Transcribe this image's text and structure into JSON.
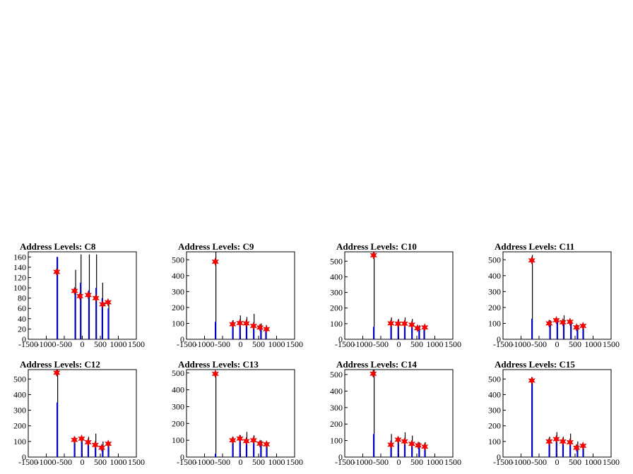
{
  "chart_data": [
    {
      "type": "bar",
      "title": "Address Levels: C8",
      "xlim": [
        -1500,
        1500
      ],
      "ylim": [
        0,
        170
      ],
      "yticks": [
        0,
        20,
        40,
        60,
        80,
        100,
        120,
        140,
        160
      ],
      "xticks": [
        -1500,
        -1000,
        -500,
        0,
        500,
        1000,
        1500
      ],
      "series": [
        {
          "x": [
            -700,
            -200,
            -50,
            180,
            380,
            550,
            720
          ],
          "values": [
            160,
            135,
            165,
            165,
            165,
            110,
            75
          ]
        },
        {
          "x": [
            -700,
            -200,
            -50,
            180,
            380,
            550,
            720
          ],
          "values": [
            160,
            100,
            110,
            95,
            100,
            80,
            60
          ]
        }
      ],
      "peaks": {
        "x": [
          -710,
          -215,
          -65,
          165,
          375,
          565,
          715
        ],
        "values": [
          131,
          94,
          84,
          86,
          80,
          68,
          72
        ]
      }
    },
    {
      "type": "bar",
      "title": "Address Levels: C9",
      "xlim": [
        -1500,
        1500
      ],
      "ylim": [
        0,
        550
      ],
      "yticks": [
        0,
        100,
        200,
        300,
        400,
        500
      ],
      "xticks": [
        -1500,
        -1000,
        -500,
        0,
        500,
        1000,
        1500
      ],
      "series": [
        {
          "x": [
            -700,
            -220,
            -20,
            160,
            360,
            560,
            700
          ],
          "values": [
            550,
            120,
            150,
            140,
            160,
            100,
            90
          ]
        },
        {
          "x": [
            -700,
            -220,
            -20,
            160,
            360,
            560,
            700
          ],
          "values": [
            110,
            100,
            110,
            105,
            100,
            70,
            60
          ]
        }
      ],
      "peaks": {
        "x": [
          -700,
          -220,
          -20,
          160,
          360,
          540,
          720
        ],
        "values": [
          488,
          95,
          102,
          100,
          84,
          74,
          64
        ]
      }
    },
    {
      "type": "bar",
      "title": "Address Levels: C10",
      "xlim": [
        -1500,
        1500
      ],
      "ylim": [
        0,
        560
      ],
      "yticks": [
        0,
        100,
        200,
        300,
        400,
        500
      ],
      "xticks": [
        -1500,
        -1000,
        -500,
        0,
        500,
        1000,
        1500
      ],
      "series": [
        {
          "x": [
            -700,
            -220,
            -20,
            160,
            360,
            560,
            700
          ],
          "values": [
            560,
            140,
            130,
            140,
            130,
            90,
            85
          ]
        },
        {
          "x": [
            -700,
            -220,
            -20,
            160,
            360,
            560,
            700
          ],
          "values": [
            80,
            100,
            95,
            105,
            95,
            60,
            65
          ]
        }
      ],
      "peaks": {
        "x": [
          -700,
          -220,
          -20,
          160,
          360,
          520,
          720
        ],
        "values": [
          538,
          102,
          100,
          100,
          93,
          71,
          76
        ]
      }
    },
    {
      "type": "bar",
      "title": "Address Levels: C11",
      "xlim": [
        -1500,
        1500
      ],
      "ylim": [
        0,
        550
      ],
      "yticks": [
        0,
        100,
        200,
        300,
        400,
        500
      ],
      "xticks": [
        -1500,
        -1000,
        -500,
        0,
        500,
        1000,
        1500
      ],
      "series": [
        {
          "x": [
            -700,
            -200,
            0,
            180,
            380,
            560,
            720
          ],
          "values": [
            530,
            120,
            130,
            150,
            120,
            90,
            90
          ]
        },
        {
          "x": [
            -700,
            -200,
            0,
            180,
            380,
            560,
            720
          ],
          "values": [
            130,
            100,
            110,
            105,
            100,
            70,
            80
          ]
        }
      ],
      "peaks": {
        "x": [
          -700,
          -220,
          -20,
          160,
          360,
          540,
          720
        ],
        "values": [
          496,
          100,
          120,
          107,
          110,
          75,
          84
        ]
      }
    },
    {
      "type": "bar",
      "title": "Address Levels: C12",
      "xlim": [
        -1500,
        1500
      ],
      "ylim": [
        0,
        560
      ],
      "yticks": [
        0,
        100,
        200,
        300,
        400,
        500
      ],
      "xticks": [
        -1500,
        -1000,
        -500,
        0,
        500,
        1000,
        1500
      ],
      "series": [
        {
          "x": [
            -700,
            -220,
            -20,
            160,
            360,
            560,
            720
          ],
          "values": [
            560,
            130,
            130,
            130,
            150,
            100,
            100
          ]
        },
        {
          "x": [
            -700,
            -220,
            -20,
            160,
            360,
            560,
            720
          ],
          "values": [
            350,
            110,
            110,
            100,
            90,
            70,
            80
          ]
        }
      ],
      "peaks": {
        "x": [
          -710,
          -220,
          -20,
          160,
          360,
          540,
          720
        ],
        "values": [
          540,
          110,
          118,
          95,
          78,
          60,
          85
        ]
      }
    },
    {
      "type": "bar",
      "title": "Address Levels: C13",
      "xlim": [
        -1500,
        1500
      ],
      "ylim": [
        0,
        520
      ],
      "yticks": [
        0,
        100,
        200,
        300,
        400,
        500
      ],
      "xticks": [
        -1500,
        -1000,
        -500,
        0,
        500,
        1000,
        1500
      ],
      "series": [
        {
          "x": [
            -700,
            -220,
            -20,
            160,
            360,
            560,
            720
          ],
          "values": [
            500,
            120,
            130,
            150,
            130,
            100,
            90
          ]
        },
        {
          "x": [
            -700,
            -220,
            -20,
            160,
            360,
            560,
            720
          ],
          "values": [
            20,
            100,
            110,
            105,
            95,
            75,
            70
          ]
        }
      ],
      "peaks": {
        "x": [
          -700,
          -220,
          -20,
          160,
          360,
          540,
          720
        ],
        "values": [
          495,
          100,
          110,
          95,
          100,
          80,
          76
        ]
      }
    },
    {
      "type": "bar",
      "title": "Address Levels: C14",
      "xlim": [
        -1500,
        1500
      ],
      "ylim": [
        0,
        530
      ],
      "yticks": [
        0,
        100,
        200,
        300,
        400,
        500
      ],
      "xticks": [
        -1500,
        -1000,
        -500,
        0,
        500,
        1000,
        1500
      ],
      "series": [
        {
          "x": [
            -700,
            -220,
            -20,
            160,
            360,
            560,
            720
          ],
          "values": [
            530,
            140,
            120,
            150,
            130,
            90,
            90
          ]
        },
        {
          "x": [
            -700,
            -220,
            -20,
            160,
            360,
            560,
            720
          ],
          "values": [
            140,
            100,
            100,
            110,
            95,
            70,
            65
          ]
        }
      ],
      "peaks": {
        "x": [
          -710,
          -220,
          -20,
          160,
          360,
          540,
          720
        ],
        "values": [
          505,
          75,
          105,
          95,
          80,
          71,
          63
        ]
      }
    },
    {
      "type": "bar",
      "title": "Address Levels: C15",
      "xlim": [
        -1500,
        1500
      ],
      "ylim": [
        0,
        560
      ],
      "yticks": [
        0,
        100,
        200,
        300,
        400,
        500
      ],
      "xticks": [
        -1500,
        -1000,
        -500,
        0,
        500,
        1000,
        1500
      ],
      "series": [
        {
          "x": [
            -700,
            -220,
            -20,
            160,
            360,
            560,
            720
          ],
          "values": [
            510,
            130,
            160,
            130,
            150,
            100,
            80
          ]
        },
        {
          "x": [
            -700,
            -220,
            -20,
            160,
            360,
            560,
            720
          ],
          "values": [
            510,
            100,
            110,
            100,
            100,
            60,
            70
          ]
        }
      ],
      "peaks": {
        "x": [
          -700,
          -220,
          -20,
          160,
          360,
          540,
          720
        ],
        "values": [
          490,
          100,
          115,
          100,
          95,
          60,
          72
        ]
      }
    }
  ],
  "colors": {
    "frame": "#000000",
    "black_series": "#000000",
    "blue_series": "#0000ff",
    "peak_marker": "#ff0000"
  }
}
